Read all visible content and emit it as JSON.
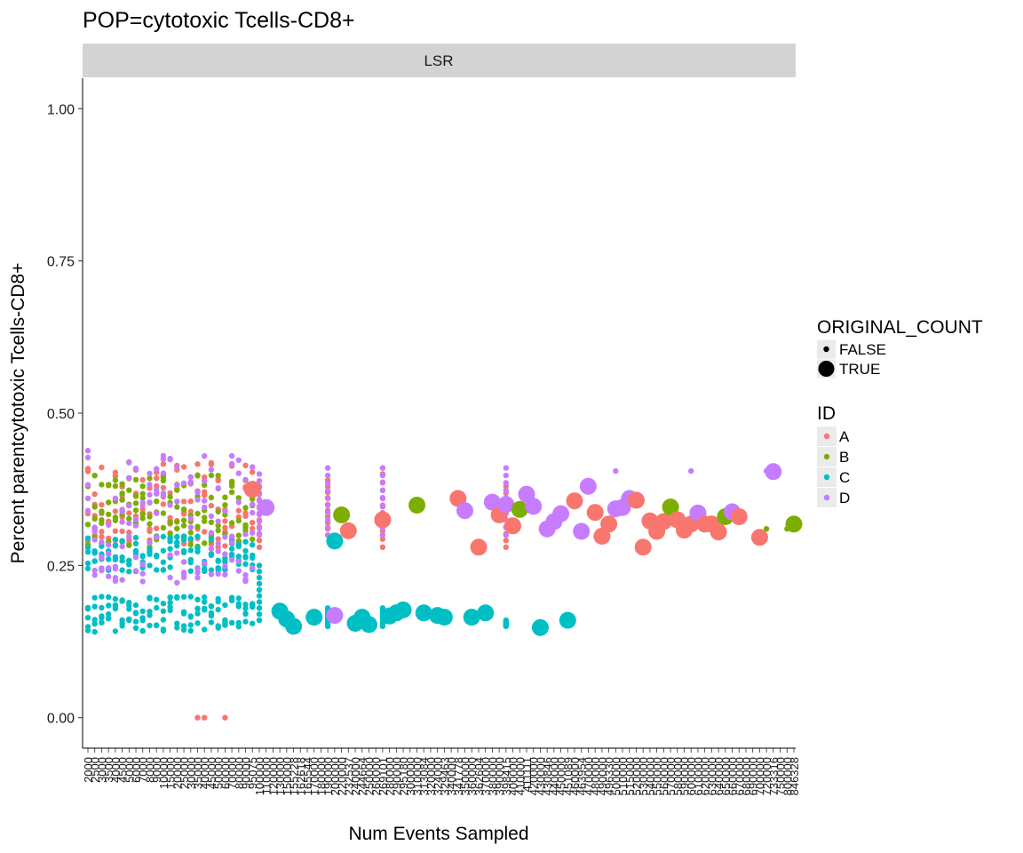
{
  "chart_data": {
    "type": "scatter",
    "title": "POP=cytotoxic Tcells-CD8+",
    "facet_label": "LSR",
    "xlabel": "Num Events Sampled",
    "ylabel": "Percent parentcytotoxic Tcells-CD8+",
    "ylim": [
      -0.05,
      1.05
    ],
    "y_ticks": [
      0.0,
      0.25,
      0.5,
      0.75,
      1.0
    ],
    "y_tick_labels": [
      "0.00",
      "0.25",
      "0.50",
      "0.75",
      "1.00"
    ],
    "grid": false,
    "x_categories": [
      "2000",
      "2500",
      "3000",
      "3500",
      "4000",
      "4500",
      "5000",
      "6000",
      "7000",
      "8000",
      "9000",
      "10000",
      "15000",
      "20000",
      "25000",
      "30000",
      "35000",
      "40000",
      "45000",
      "50000",
      "60000",
      "70000",
      "80000",
      "90000",
      "95075",
      "100000",
      "110000",
      "120000",
      "130000",
      "150000",
      "155228",
      "162618",
      "165544",
      "170000",
      "180000",
      "190000",
      "200000",
      "220000",
      "232537",
      "240000",
      "244664",
      "250000",
      "260000",
      "269101",
      "280000",
      "290000",
      "295180",
      "300000",
      "310000",
      "313084",
      "320000",
      "324000",
      "329463",
      "340000",
      "341778",
      "350000",
      "360000",
      "362604",
      "370000",
      "380000",
      "390000",
      "398415",
      "400000",
      "410000",
      "411111",
      "420000",
      "430000",
      "430846",
      "440000",
      "450000",
      "451089",
      "460000",
      "463954",
      "470000",
      "480000",
      "490000",
      "496330",
      "500000",
      "510000",
      "515000",
      "520000",
      "530000",
      "540000",
      "550000",
      "560000",
      "570000",
      "580000",
      "590000",
      "600000",
      "610000",
      "620000",
      "630000",
      "640000",
      "650000",
      "660000",
      "670000",
      "680000",
      "690000",
      "700000",
      "720000",
      "733316",
      "750000",
      "800000",
      "846328"
    ],
    "legend": [
      {
        "title": "ORIGINAL_COUNT",
        "entries": [
          "FALSE",
          "TRUE"
        ]
      },
      {
        "title": "ID",
        "entries": [
          "A",
          "B",
          "C",
          "D"
        ]
      }
    ],
    "id_colors": {
      "A": "#F8766D",
      "B": "#7CAE00",
      "C": "#00BFC4",
      "D": "#C77CFF"
    },
    "original_count_true": [
      {
        "x": "95075",
        "id": "A",
        "y": 0.375
      },
      {
        "x": "110000",
        "id": "D",
        "y": 0.345
      },
      {
        "x": "130000",
        "id": "C",
        "y": 0.175
      },
      {
        "x": "150000",
        "id": "C",
        "y": 0.162
      },
      {
        "x": "155228",
        "id": "C",
        "y": 0.15
      },
      {
        "x": "170000",
        "id": "C",
        "y": 0.165
      },
      {
        "x": "200000",
        "id": "C",
        "y": 0.29
      },
      {
        "x": "200000",
        "id": "D",
        "y": 0.168
      },
      {
        "x": "220000",
        "id": "B",
        "y": 0.333
      },
      {
        "x": "232537",
        "id": "A",
        "y": 0.307
      },
      {
        "x": "240000",
        "id": "C",
        "y": 0.155
      },
      {
        "x": "244664",
        "id": "C",
        "y": 0.165
      },
      {
        "x": "250000",
        "id": "C",
        "y": 0.153
      },
      {
        "x": "269101",
        "id": "A",
        "y": 0.325
      },
      {
        "x": "280000",
        "id": "C",
        "y": 0.167
      },
      {
        "x": "290000",
        "id": "C",
        "y": 0.172
      },
      {
        "x": "295180",
        "id": "C",
        "y": 0.177
      },
      {
        "x": "310000",
        "id": "B",
        "y": 0.349
      },
      {
        "x": "313084",
        "id": "C",
        "y": 0.172
      },
      {
        "x": "324000",
        "id": "C",
        "y": 0.168
      },
      {
        "x": "329463",
        "id": "C",
        "y": 0.165
      },
      {
        "x": "341778",
        "id": "A",
        "y": 0.36
      },
      {
        "x": "350000",
        "id": "D",
        "y": 0.34
      },
      {
        "x": "360000",
        "id": "C",
        "y": 0.165
      },
      {
        "x": "362604",
        "id": "A",
        "y": 0.28
      },
      {
        "x": "370000",
        "id": "C",
        "y": 0.172
      },
      {
        "x": "380000",
        "id": "D",
        "y": 0.354
      },
      {
        "x": "390000",
        "id": "A",
        "y": 0.333
      },
      {
        "x": "398415",
        "id": "D",
        "y": 0.35
      },
      {
        "x": "400000",
        "id": "A",
        "y": 0.315
      },
      {
        "x": "410000",
        "id": "B",
        "y": 0.342
      },
      {
        "x": "411111",
        "id": "D",
        "y": 0.367
      },
      {
        "x": "420000",
        "id": "D",
        "y": 0.347
      },
      {
        "x": "430000",
        "id": "C",
        "y": 0.148
      },
      {
        "x": "430846",
        "id": "D",
        "y": 0.31
      },
      {
        "x": "440000",
        "id": "D",
        "y": 0.322
      },
      {
        "x": "450000",
        "id": "D",
        "y": 0.335
      },
      {
        "x": "451089",
        "id": "C",
        "y": 0.16
      },
      {
        "x": "460000",
        "id": "A",
        "y": 0.356
      },
      {
        "x": "463954",
        "id": "D",
        "y": 0.306
      },
      {
        "x": "470000",
        "id": "D",
        "y": 0.38
      },
      {
        "x": "480000",
        "id": "A",
        "y": 0.337
      },
      {
        "x": "490000",
        "id": "A",
        "y": 0.298
      },
      {
        "x": "496330",
        "id": "A",
        "y": 0.318
      },
      {
        "x": "500000",
        "id": "D",
        "y": 0.343
      },
      {
        "x": "510000",
        "id": "D",
        "y": 0.345
      },
      {
        "x": "515000",
        "id": "D",
        "y": 0.36
      },
      {
        "x": "520000",
        "id": "A",
        "y": 0.357
      },
      {
        "x": "530000",
        "id": "A",
        "y": 0.28
      },
      {
        "x": "540000",
        "id": "A",
        "y": 0.323
      },
      {
        "x": "550000",
        "id": "A",
        "y": 0.306
      },
      {
        "x": "560000",
        "id": "A",
        "y": 0.322
      },
      {
        "x": "570000",
        "id": "B",
        "y": 0.346
      },
      {
        "x": "580000",
        "id": "A",
        "y": 0.325
      },
      {
        "x": "590000",
        "id": "A",
        "y": 0.308
      },
      {
        "x": "600000",
        "id": "A",
        "y": 0.318
      },
      {
        "x": "610000",
        "id": "D",
        "y": 0.336
      },
      {
        "x": "620000",
        "id": "A",
        "y": 0.318
      },
      {
        "x": "630000",
        "id": "A",
        "y": 0.318
      },
      {
        "x": "640000",
        "id": "A",
        "y": 0.305
      },
      {
        "x": "650000",
        "id": "B",
        "y": 0.33
      },
      {
        "x": "660000",
        "id": "D",
        "y": 0.338
      },
      {
        "x": "670000",
        "id": "A",
        "y": 0.33
      },
      {
        "x": "700000",
        "id": "A",
        "y": 0.296
      },
      {
        "x": "733316",
        "id": "D",
        "y": 0.404
      },
      {
        "x": "846328",
        "id": "B",
        "y": 0.318
      }
    ],
    "original_count_false": [
      {
        "x_range": [
          "2000",
          "95075"
        ],
        "id": "A",
        "y_range": [
          0.28,
          0.42
        ]
      },
      {
        "x_range": [
          "2000",
          "95075"
        ],
        "id": "B",
        "y_range": [
          0.28,
          0.4
        ]
      },
      {
        "x_range": [
          "2000",
          "95075"
        ],
        "id": "C",
        "y_range": [
          0.24,
          0.3
        ]
      },
      {
        "x_range": [
          "2000",
          "95075"
        ],
        "id": "C",
        "y_range": [
          0.14,
          0.2
        ]
      },
      {
        "x_range": [
          "2000",
          "95075"
        ],
        "id": "D",
        "y_range": [
          0.22,
          0.44
        ]
      },
      {
        "x": "35000",
        "id": "A",
        "y": 0.0
      },
      {
        "x": "40000",
        "id": "A",
        "y": 0.0
      },
      {
        "x": "60000",
        "id": "A",
        "y": 0.0
      },
      {
        "x": "100000",
        "id": "A",
        "y_range": [
          0.28,
          0.38
        ]
      },
      {
        "x": "100000",
        "id": "D",
        "y_range": [
          0.3,
          0.4
        ]
      },
      {
        "x": "100000",
        "id": "C",
        "y_range": [
          0.16,
          0.25
        ]
      },
      {
        "x": "190000",
        "id": "A",
        "y_range": [
          0.3,
          0.39
        ]
      },
      {
        "x": "190000",
        "id": "C",
        "y_range": [
          0.15,
          0.18
        ]
      },
      {
        "x": "190000",
        "id": "D",
        "y_range": [
          0.3,
          0.41
        ]
      },
      {
        "x": "269101",
        "id": "A",
        "y_range": [
          0.28,
          0.4
        ]
      },
      {
        "x": "269101",
        "id": "C",
        "y_range": [
          0.15,
          0.18
        ]
      },
      {
        "x": "269101",
        "id": "D",
        "y_range": [
          0.3,
          0.41
        ]
      },
      {
        "x": "398415",
        "id": "A",
        "y_range": [
          0.28,
          0.38
        ]
      },
      {
        "x": "398415",
        "id": "C",
        "y_range": [
          0.15,
          0.16
        ]
      },
      {
        "x": "398415",
        "id": "D",
        "y_range": [
          0.3,
          0.41
        ]
      },
      {
        "x": "500000",
        "id": "D",
        "y": 0.405
      },
      {
        "x": "600000",
        "id": "D",
        "y": 0.405
      },
      {
        "x": "720000",
        "id": "D",
        "y": 0.405
      },
      {
        "x": "720000",
        "id": "B",
        "y": 0.31
      },
      {
        "x": "800000",
        "id": "B",
        "y": 0.31
      }
    ]
  }
}
